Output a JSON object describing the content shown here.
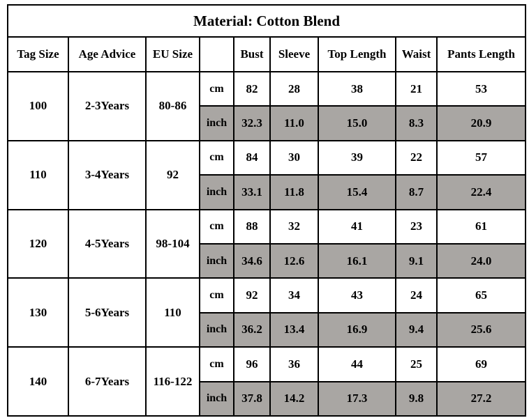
{
  "title": "Material: Cotton Blend",
  "headers": [
    "Tag Size",
    "Age Advice",
    "EU Size",
    "",
    "Bust",
    "Sleeve",
    "Top Length",
    "Waist",
    "Pants Length"
  ],
  "unit_cm": "cm",
  "unit_inch": "inch",
  "rows": [
    {
      "tag": "100",
      "age": "2-3Years",
      "eu": "80-86",
      "cm": [
        "82",
        "28",
        "38",
        "21",
        "53"
      ],
      "inch": [
        "32.3",
        "11.0",
        "15.0",
        "8.3",
        "20.9"
      ]
    },
    {
      "tag": "110",
      "age": "3-4Years",
      "eu": "92",
      "cm": [
        "84",
        "30",
        "39",
        "22",
        "57"
      ],
      "inch": [
        "33.1",
        "11.8",
        "15.4",
        "8.7",
        "22.4"
      ]
    },
    {
      "tag": "120",
      "age": "4-5Years",
      "eu": "98-104",
      "cm": [
        "88",
        "32",
        "41",
        "23",
        "61"
      ],
      "inch": [
        "34.6",
        "12.6",
        "16.1",
        "9.1",
        "24.0"
      ]
    },
    {
      "tag": "130",
      "age": "5-6Years",
      "eu": "110",
      "cm": [
        "92",
        "34",
        "43",
        "24",
        "65"
      ],
      "inch": [
        "36.2",
        "13.4",
        "16.9",
        "9.4",
        "25.6"
      ]
    },
    {
      "tag": "140",
      "age": "6-7Years",
      "eu": "116-122",
      "cm": [
        "96",
        "36",
        "44",
        "25",
        "69"
      ],
      "inch": [
        "37.8",
        "14.2",
        "17.3",
        "9.8",
        "27.2"
      ]
    }
  ],
  "colors": {
    "inch_row_bg": "#a9a6a3",
    "border": "#000000"
  }
}
